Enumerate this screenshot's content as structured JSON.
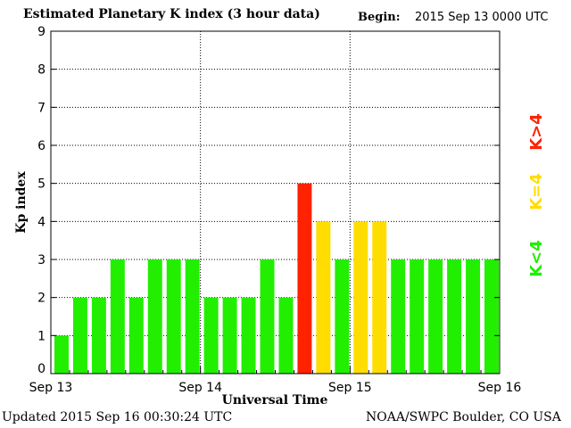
{
  "header": {
    "title": "Estimated Planetary K index (3 hour data)",
    "begin_label": "Begin:",
    "begin_value": "2015 Sep 13 0000 UTC"
  },
  "footer": {
    "updated": "Updated 2015 Sep 16 00:30:24 UTC",
    "source": "NOAA/SWPC Boulder, CO USA"
  },
  "colors": {
    "below": "#22ee00",
    "equal": "#ffdd00",
    "above": "#ff2200"
  },
  "legend": [
    {
      "label": "K<4",
      "color_key": "below"
    },
    {
      "label": "K=4",
      "color_key": "equal"
    },
    {
      "label": "K>4",
      "color_key": "above"
    }
  ],
  "chart_data": {
    "type": "bar",
    "title": "Estimated Planetary K index (3 hour data)",
    "xlabel": "Universal Time",
    "ylabel": "Kp index",
    "ylim": [
      0,
      9
    ],
    "yticks": [
      0,
      1,
      2,
      3,
      4,
      5,
      6,
      7,
      8,
      9
    ],
    "x_ticks": [
      "Sep 13",
      "Sep 14",
      "Sep 15",
      "Sep 16"
    ],
    "grid": true,
    "values": [
      1,
      2,
      2,
      3,
      2,
      3,
      3,
      3,
      2,
      2,
      2,
      3,
      2,
      5,
      4,
      3,
      4,
      4,
      3,
      3,
      3,
      3,
      3,
      3
    ]
  }
}
